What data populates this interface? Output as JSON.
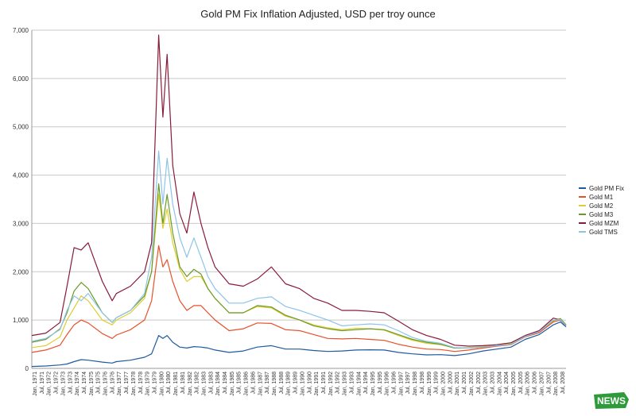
{
  "chart_data": {
    "type": "line",
    "title": "Gold PM Fix Inflation Adjusted, USD per troy ounce",
    "xlabel": "",
    "ylabel": "",
    "ylim": [
      0,
      7000
    ],
    "yticks": [
      "0",
      "1,000",
      "2,000",
      "3,000",
      "4,000",
      "5,000",
      "6,000",
      "7,000"
    ],
    "xlim": [
      1971.0,
      2008.9
    ],
    "xticks": [
      "Jan, 1971",
      "Jul, 1971",
      "Jan, 1972",
      "Jul, 1972",
      "Jan, 1973",
      "Jul, 1973",
      "Jan, 1974",
      "Jul, 1974",
      "Jan, 1975",
      "Jul, 1975",
      "Jan, 1976",
      "Jul, 1976",
      "Jan, 1977",
      "Jul, 1977",
      "Jan, 1978",
      "Jul, 1978",
      "Jan, 1979",
      "Jul, 1979",
      "Jan, 1980",
      "Jul, 1980",
      "Jan, 1981",
      "Jul, 1981",
      "Jan, 1982",
      "Jul, 1982",
      "Jan, 1983",
      "Jul, 1983",
      "Jan, 1984",
      "Jul, 1984",
      "Jan, 1985",
      "Jul, 1985",
      "Jan, 1986",
      "Jul, 1986",
      "Jan, 1987",
      "Jul, 1987",
      "Jan, 1988",
      "Jul, 1988",
      "Jan, 1989",
      "Jul, 1989",
      "Jan, 1990",
      "Jul, 1990",
      "Jan, 1991",
      "Jul, 1991",
      "Jan, 1992",
      "Jul, 1992",
      "Jan, 1993",
      "Jul, 1993",
      "Jan, 1994",
      "Jul, 1994",
      "Jan, 1995",
      "Jul, 1995",
      "Jan, 1996",
      "Jul, 1996",
      "Jan, 1997",
      "Jul, 1997",
      "Jan, 1998",
      "Jul, 1998",
      "Jan, 1999",
      "Jul, 1999",
      "Jan, 2000",
      "Jul, 2000",
      "Jan, 2001",
      "Jul, 2001",
      "Jan, 2002",
      "Jul, 2002",
      "Jan, 2003",
      "Jul, 2003",
      "Jan, 2004",
      "Jul, 2004",
      "Jan, 2005",
      "Jul, 2005",
      "Jan, 2006",
      "Jul, 2006",
      "Jan, 2007",
      "Jul, 2007",
      "Jan, 2008",
      "Jul, 2008"
    ],
    "grid": true,
    "legend_position": "right",
    "series": [
      {
        "name": "Gold PM Fix",
        "color": "#1f5aa0",
        "x": [
          1971,
          1972,
          1973,
          1973.5,
          1974,
          1974.5,
          1975,
          1976,
          1976.7,
          1977,
          1978,
          1979,
          1979.5,
          1980.0,
          1980.3,
          1980.6,
          1981,
          1981.5,
          1982,
          1982.5,
          1983,
          1983.5,
          1984,
          1985,
          1986,
          1987,
          1988,
          1989,
          1990,
          1991,
          1992,
          1993,
          1994,
          1995,
          1996,
          1997,
          1998,
          1999,
          2000,
          2001,
          2002,
          2003,
          2004,
          2005,
          2006,
          2007,
          2008,
          2008.5,
          2008.9
        ],
        "y": [
          40,
          50,
          70,
          90,
          140,
          180,
          170,
          130,
          110,
          140,
          170,
          230,
          300,
          680,
          620,
          680,
          540,
          440,
          420,
          450,
          440,
          420,
          380,
          330,
          360,
          440,
          470,
          400,
          400,
          370,
          350,
          360,
          380,
          385,
          380,
          330,
          300,
          280,
          285,
          265,
          300,
          360,
          400,
          440,
          600,
          700,
          900,
          960,
          860
        ]
      },
      {
        "name": "Gold M1",
        "color": "#e8502a",
        "x": [
          1971,
          1972,
          1973,
          1973.5,
          1974,
          1974.5,
          1975,
          1976,
          1976.7,
          1977,
          1978,
          1979,
          1979.5,
          1980.0,
          1980.3,
          1980.6,
          1981,
          1981.5,
          1982,
          1982.5,
          1983,
          1983.5,
          1984,
          1985,
          1986,
          1987,
          1988,
          1989,
          1990,
          1991,
          1992,
          1993,
          1994,
          1995,
          1996,
          1997,
          1998,
          1999,
          2000,
          2001,
          2002,
          2003,
          2004,
          2005,
          2006,
          2007,
          2008,
          2008.5,
          2008.9
        ],
        "y": [
          330,
          380,
          480,
          700,
          900,
          1000,
          940,
          720,
          620,
          690,
          800,
          1000,
          1400,
          2540,
          2100,
          2250,
          1800,
          1400,
          1200,
          1300,
          1300,
          1150,
          1000,
          780,
          820,
          940,
          930,
          800,
          780,
          700,
          620,
          610,
          620,
          600,
          580,
          500,
          440,
          400,
          390,
          350,
          380,
          420,
          460,
          490,
          650,
          740,
          960,
          1000,
          900
        ]
      },
      {
        "name": "Gold M2",
        "color": "#e0cc30",
        "x": [
          1971,
          1972,
          1973,
          1973.5,
          1974,
          1974.5,
          1975,
          1976,
          1976.7,
          1977,
          1978,
          1979,
          1979.5,
          1980.0,
          1980.3,
          1980.6,
          1981,
          1981.5,
          1982,
          1982.5,
          1983,
          1983.5,
          1984,
          1985,
          1986,
          1987,
          1988,
          1989,
          1990,
          1991,
          1992,
          1993,
          1994,
          1995,
          1996,
          1997,
          1998,
          1999,
          2000,
          2001,
          2002,
          2003,
          2004,
          2005,
          2006,
          2007,
          2008,
          2008.5,
          2008.9
        ],
        "y": [
          430,
          470,
          650,
          1000,
          1250,
          1500,
          1400,
          1000,
          900,
          1000,
          1150,
          1450,
          2000,
          3600,
          2900,
          3300,
          2600,
          2050,
          1800,
          1900,
          1900,
          1650,
          1450,
          1150,
          1150,
          1280,
          1250,
          1080,
          1000,
          900,
          840,
          800,
          830,
          820,
          790,
          680,
          580,
          520,
          490,
          420,
          430,
          450,
          490,
          520,
          680,
          770,
          980,
          1020,
          900
        ]
      },
      {
        "name": "Gold M3",
        "color": "#6a9a2a",
        "x": [
          1971,
          1972,
          1973,
          1973.5,
          1974,
          1974.5,
          1975,
          1976,
          1976.7,
          1977,
          1978,
          1979,
          1979.5,
          1980.0,
          1980.3,
          1980.6,
          1981,
          1981.5,
          1982,
          1982.5,
          1983,
          1983.5,
          1984,
          1985,
          1986,
          1987,
          1988,
          1989,
          1990,
          1991,
          1992,
          1993,
          1994,
          1995,
          1996,
          1997,
          1998,
          1999,
          2000,
          2001,
          2002,
          2003,
          2004,
          2005,
          2006,
          2007,
          2008,
          2008.5,
          2008.9
        ],
        "y": [
          540,
          600,
          820,
          1150,
          1600,
          1780,
          1650,
          1150,
          950,
          1050,
          1200,
          1500,
          2000,
          3820,
          3000,
          3600,
          2800,
          2100,
          1900,
          2050,
          1950,
          1650,
          1450,
          1150,
          1150,
          1300,
          1270,
          1100,
          1000,
          880,
          820,
          780,
          800,
          820,
          800,
          700,
          600,
          540,
          500,
          420,
          420,
          440,
          470,
          500,
          660,
          760,
          990,
          1030,
          900
        ]
      },
      {
        "name": "Gold MZM",
        "color": "#8a1a3a",
        "x": [
          1971,
          1972,
          1973,
          1973.5,
          1974,
          1974.5,
          1975,
          1976,
          1976.7,
          1977,
          1978,
          1979,
          1979.5,
          1980.0,
          1980.3,
          1980.6,
          1981,
          1981.5,
          1982,
          1982.5,
          1983,
          1983.5,
          1984,
          1985,
          1986,
          1987,
          1988,
          1989,
          1990,
          1991,
          1992,
          1993,
          1994,
          1995,
          1996,
          1997,
          1998,
          1999,
          2000,
          2001,
          2002,
          2003,
          2004,
          2005,
          2006,
          2007,
          2008,
          2008.5,
          2008.9
        ],
        "y": [
          680,
          730,
          950,
          1700,
          2500,
          2450,
          2600,
          1800,
          1400,
          1550,
          1700,
          2000,
          2600,
          6900,
          5200,
          6500,
          4200,
          3200,
          2800,
          3650,
          3000,
          2500,
          2100,
          1750,
          1700,
          1850,
          2100,
          1750,
          1650,
          1450,
          1350,
          1200,
          1200,
          1180,
          1150,
          980,
          800,
          680,
          600,
          480,
          460,
          470,
          490,
          530,
          680,
          780,
          1040,
          1000,
          880
        ]
      },
      {
        "name": "Gold TMS",
        "color": "#8cc4ea",
        "x": [
          1971,
          1972,
          1973,
          1973.5,
          1974,
          1974.5,
          1975,
          1976,
          1976.7,
          1977,
          1978,
          1979,
          1979.5,
          1980.0,
          1980.3,
          1980.6,
          1981,
          1981.5,
          1982,
          1982.5,
          1983,
          1983.5,
          1984,
          1985,
          1986,
          1987,
          1988,
          1989,
          1990,
          1991,
          1992,
          1993,
          1994,
          1995,
          1996,
          1997,
          1998,
          1999,
          2000,
          2001,
          2002,
          2003,
          2004,
          2005,
          2006,
          2007,
          2008,
          2008.5,
          2008.9
        ],
        "y": [
          560,
          620,
          800,
          1200,
          1500,
          1400,
          1550,
          1150,
          950,
          1050,
          1200,
          1550,
          2300,
          4500,
          3400,
          4350,
          3400,
          2700,
          2300,
          2700,
          2300,
          1900,
          1650,
          1350,
          1350,
          1450,
          1480,
          1280,
          1200,
          1100,
          1000,
          880,
          900,
          920,
          900,
          780,
          640,
          560,
          520,
          430,
          420,
          440,
          470,
          500,
          660,
          760,
          1000,
          1010,
          880
        ]
      }
    ]
  },
  "logo": {
    "text": "NEWS",
    "bg_color": "#2e9a3a"
  }
}
